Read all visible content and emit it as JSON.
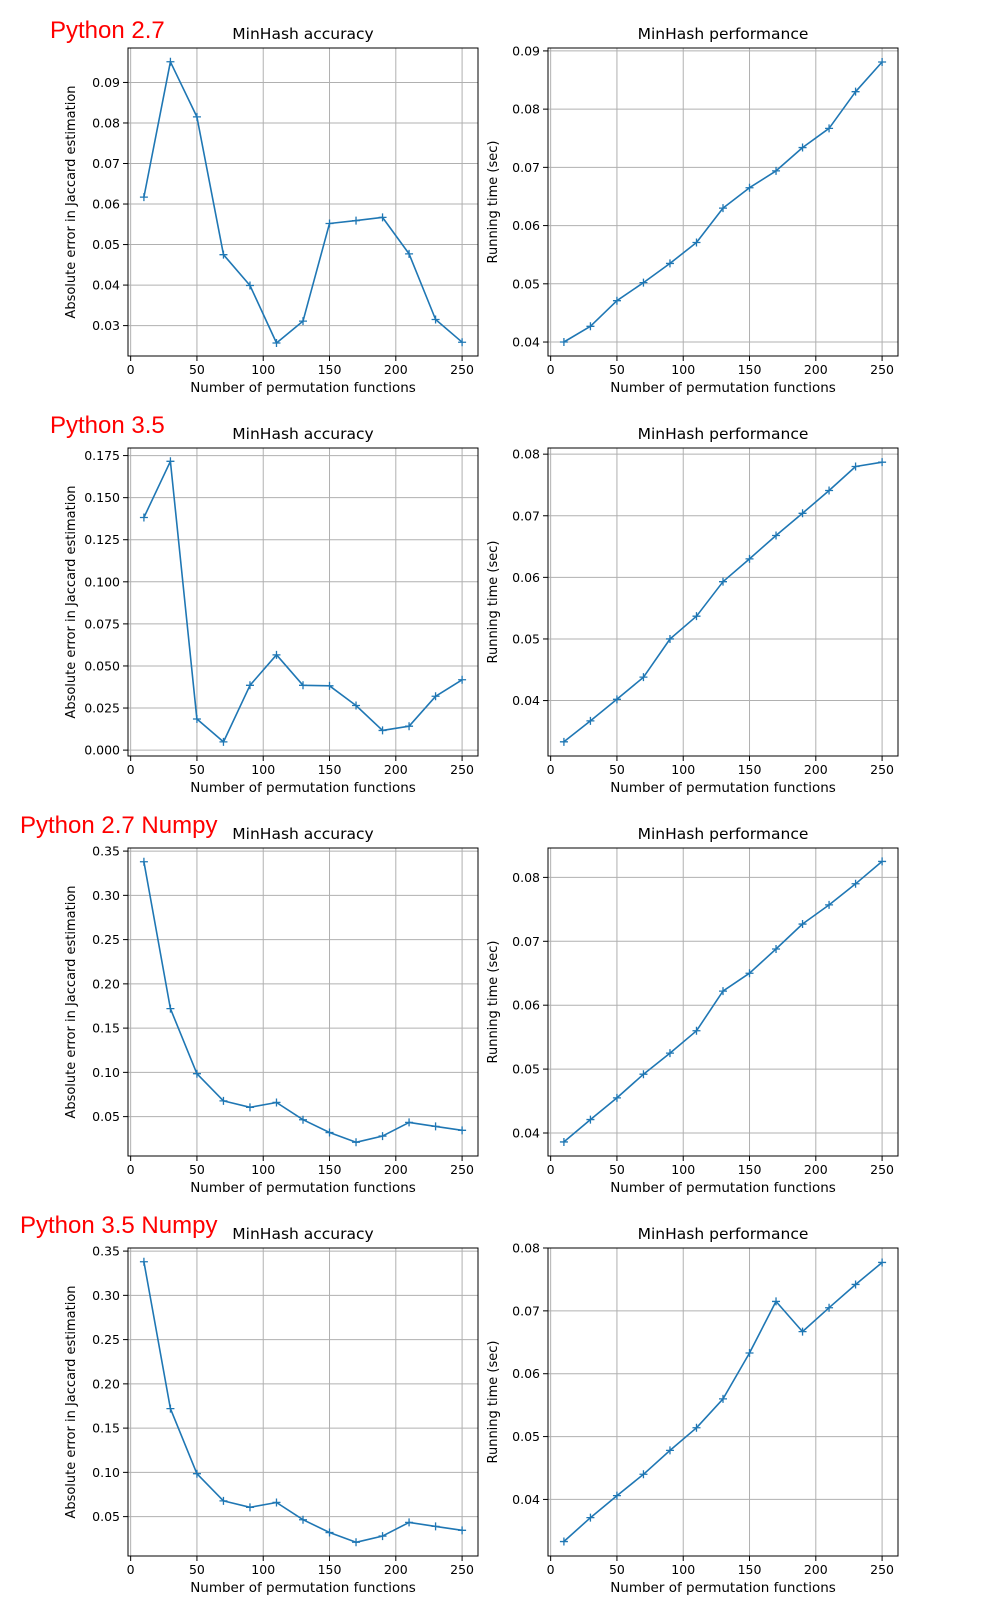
{
  "row_labels": [
    "Python 2.7",
    "Python 3.5",
    "Python 2.7 Numpy",
    "Python 3.5 Numpy"
  ],
  "colors": {
    "series": "#1f77b4",
    "grid": "#b0b0b0",
    "row_label": "#ff0000"
  },
  "chart_data": [
    {
      "type": "line",
      "title": "MinHash accuracy",
      "xlabel": "Number of permutation functions",
      "ylabel": "Absolute error in Jaccard estimation",
      "x": [
        10,
        30,
        50,
        70,
        90,
        110,
        130,
        150,
        170,
        190,
        210,
        230,
        250
      ],
      "series": [
        {
          "values": [
            0.0617,
            0.0951,
            0.0815,
            0.0475,
            0.0399,
            0.0257,
            0.0311,
            0.0552,
            0.0559,
            0.0567,
            0.0477,
            0.0315,
            0.0259
          ]
        }
      ],
      "xlim": [
        -2,
        262
      ],
      "ylim": [
        0.0225,
        0.0985
      ],
      "xticks": [
        0,
        50,
        100,
        150,
        200,
        250
      ],
      "xtick_labels": [
        "0",
        "50",
        "100",
        "150",
        "200",
        "250"
      ],
      "yticks": [
        0.03,
        0.04,
        0.05,
        0.06,
        0.07,
        0.08,
        0.09
      ],
      "ytick_labels": [
        "0.03",
        "0.04",
        "0.05",
        "0.06",
        "0.07",
        "0.08",
        "0.09"
      ],
      "marker": "+",
      "grid": true
    },
    {
      "type": "line",
      "title": "MinHash performance",
      "xlabel": "Number of permutation functions",
      "ylabel": "Running time (sec)",
      "x": [
        10,
        30,
        50,
        70,
        90,
        110,
        130,
        150,
        170,
        190,
        210,
        230,
        250
      ],
      "series": [
        {
          "values": [
            0.04,
            0.0427,
            0.0471,
            0.0502,
            0.0535,
            0.0571,
            0.063,
            0.0665,
            0.0694,
            0.0734,
            0.0767,
            0.083,
            0.0881
          ]
        }
      ],
      "xlim": [
        -2,
        262
      ],
      "ylim": [
        0.0376,
        0.0905
      ],
      "xticks": [
        0,
        50,
        100,
        150,
        200,
        250
      ],
      "xtick_labels": [
        "0",
        "50",
        "100",
        "150",
        "200",
        "250"
      ],
      "yticks": [
        0.04,
        0.05,
        0.06,
        0.07,
        0.08,
        0.09
      ],
      "ytick_labels": [
        "0.04",
        "0.05",
        "0.06",
        "0.07",
        "0.08",
        "0.09"
      ],
      "marker": "+",
      "grid": true
    },
    {
      "type": "line",
      "title": "MinHash accuracy",
      "xlabel": "Number of permutation functions",
      "ylabel": "Absolute error in Jaccard estimation",
      "x": [
        10,
        30,
        50,
        70,
        90,
        110,
        130,
        150,
        170,
        190,
        210,
        230,
        250
      ],
      "series": [
        {
          "values": [
            0.1382,
            0.1716,
            0.0185,
            0.0049,
            0.0385,
            0.0566,
            0.0385,
            0.0382,
            0.0265,
            0.0117,
            0.0142,
            0.032,
            0.0418
          ]
        }
      ],
      "xlim": [
        -2,
        262
      ],
      "ylim": [
        -0.0035,
        0.1795
      ],
      "xticks": [
        0,
        50,
        100,
        150,
        200,
        250
      ],
      "xtick_labels": [
        "0",
        "50",
        "100",
        "150",
        "200",
        "250"
      ],
      "yticks": [
        0.0,
        0.025,
        0.05,
        0.075,
        0.1,
        0.125,
        0.15,
        0.175
      ],
      "ytick_labels": [
        "0.000",
        "0.025",
        "0.050",
        "0.075",
        "0.100",
        "0.125",
        "0.150",
        "0.175"
      ],
      "marker": "+",
      "grid": true
    },
    {
      "type": "line",
      "title": "MinHash performance",
      "xlabel": "Number of permutation functions",
      "ylabel": "Running time (sec)",
      "x": [
        10,
        30,
        50,
        70,
        90,
        110,
        130,
        150,
        170,
        190,
        210,
        230,
        250
      ],
      "series": [
        {
          "values": [
            0.0333,
            0.0367,
            0.0402,
            0.0438,
            0.05,
            0.0537,
            0.0593,
            0.063,
            0.0668,
            0.0704,
            0.0741,
            0.078,
            0.0787
          ]
        }
      ],
      "xlim": [
        -2,
        262
      ],
      "ylim": [
        0.031,
        0.081
      ],
      "xticks": [
        0,
        50,
        100,
        150,
        200,
        250
      ],
      "xtick_labels": [
        "0",
        "50",
        "100",
        "150",
        "200",
        "250"
      ],
      "yticks": [
        0.04,
        0.05,
        0.06,
        0.07,
        0.08
      ],
      "ytick_labels": [
        "0.04",
        "0.05",
        "0.06",
        "0.07",
        "0.08"
      ],
      "marker": "+",
      "grid": true
    },
    {
      "type": "line",
      "title": "MinHash accuracy",
      "xlabel": "Number of permutation functions",
      "ylabel": "Absolute error in Jaccard estimation",
      "x": [
        10,
        30,
        50,
        70,
        90,
        110,
        130,
        150,
        170,
        190,
        210,
        230,
        250
      ],
      "series": [
        {
          "values": [
            0.338,
            0.172,
            0.0985,
            0.0678,
            0.0605,
            0.066,
            0.0465,
            0.032,
            0.021,
            0.028,
            0.0435,
            0.039,
            0.0345
          ]
        }
      ],
      "xlim": [
        -2,
        262
      ],
      "ylim": [
        0.0055,
        0.3535
      ],
      "xticks": [
        0,
        50,
        100,
        150,
        200,
        250
      ],
      "xtick_labels": [
        "0",
        "50",
        "100",
        "150",
        "200",
        "250"
      ],
      "yticks": [
        0.05,
        0.1,
        0.15,
        0.2,
        0.25,
        0.3,
        0.35
      ],
      "ytick_labels": [
        "0.05",
        "0.10",
        "0.15",
        "0.20",
        "0.25",
        "0.30",
        "0.35"
      ],
      "marker": "+",
      "grid": true
    },
    {
      "type": "line",
      "title": "MinHash performance",
      "xlabel": "Number of permutation functions",
      "ylabel": "Running time (sec)",
      "x": [
        10,
        30,
        50,
        70,
        90,
        110,
        130,
        150,
        170,
        190,
        210,
        230,
        250
      ],
      "series": [
        {
          "values": [
            0.0386,
            0.0421,
            0.0455,
            0.0492,
            0.0525,
            0.056,
            0.0622,
            0.065,
            0.0688,
            0.0727,
            0.0757,
            0.079,
            0.0825
          ]
        }
      ],
      "xlim": [
        -2,
        262
      ],
      "ylim": [
        0.0364,
        0.0846
      ],
      "xticks": [
        0,
        50,
        100,
        150,
        200,
        250
      ],
      "xtick_labels": [
        "0",
        "50",
        "100",
        "150",
        "200",
        "250"
      ],
      "yticks": [
        0.04,
        0.05,
        0.06,
        0.07,
        0.08
      ],
      "ytick_labels": [
        "0.04",
        "0.05",
        "0.06",
        "0.07",
        "0.08"
      ],
      "marker": "+",
      "grid": true
    },
    {
      "type": "line",
      "title": "MinHash accuracy",
      "xlabel": "Number of permutation functions",
      "ylabel": "Absolute error in Jaccard estimation",
      "x": [
        10,
        30,
        50,
        70,
        90,
        110,
        130,
        150,
        170,
        190,
        210,
        230,
        250
      ],
      "series": [
        {
          "values": [
            0.338,
            0.172,
            0.0985,
            0.0678,
            0.0605,
            0.066,
            0.0465,
            0.032,
            0.021,
            0.028,
            0.0435,
            0.039,
            0.0345
          ]
        }
      ],
      "xlim": [
        -2,
        262
      ],
      "ylim": [
        0.0055,
        0.3535
      ],
      "xticks": [
        0,
        50,
        100,
        150,
        200,
        250
      ],
      "xtick_labels": [
        "0",
        "50",
        "100",
        "150",
        "200",
        "250"
      ],
      "yticks": [
        0.05,
        0.1,
        0.15,
        0.2,
        0.25,
        0.3,
        0.35
      ],
      "ytick_labels": [
        "0.05",
        "0.10",
        "0.15",
        "0.20",
        "0.25",
        "0.30",
        "0.35"
      ],
      "marker": "+",
      "grid": true
    },
    {
      "type": "line",
      "title": "MinHash performance",
      "xlabel": "Number of permutation functions",
      "ylabel": "Running time (sec)",
      "x": [
        10,
        30,
        50,
        70,
        90,
        110,
        130,
        150,
        170,
        190,
        210,
        230,
        250
      ],
      "series": [
        {
          "values": [
            0.0333,
            0.0371,
            0.0406,
            0.044,
            0.0478,
            0.0514,
            0.056,
            0.0633,
            0.0715,
            0.0667,
            0.0705,
            0.0742,
            0.0777
          ]
        }
      ],
      "xlim": [
        -2,
        262
      ],
      "ylim": [
        0.031,
        0.08
      ],
      "xticks": [
        0,
        50,
        100,
        150,
        200,
        250
      ],
      "xtick_labels": [
        "0",
        "50",
        "100",
        "150",
        "200",
        "250"
      ],
      "yticks": [
        0.04,
        0.05,
        0.06,
        0.07,
        0.08
      ],
      "ytick_labels": [
        "0.04",
        "0.05",
        "0.06",
        "0.07",
        "0.08"
      ],
      "marker": "+",
      "grid": true
    }
  ]
}
